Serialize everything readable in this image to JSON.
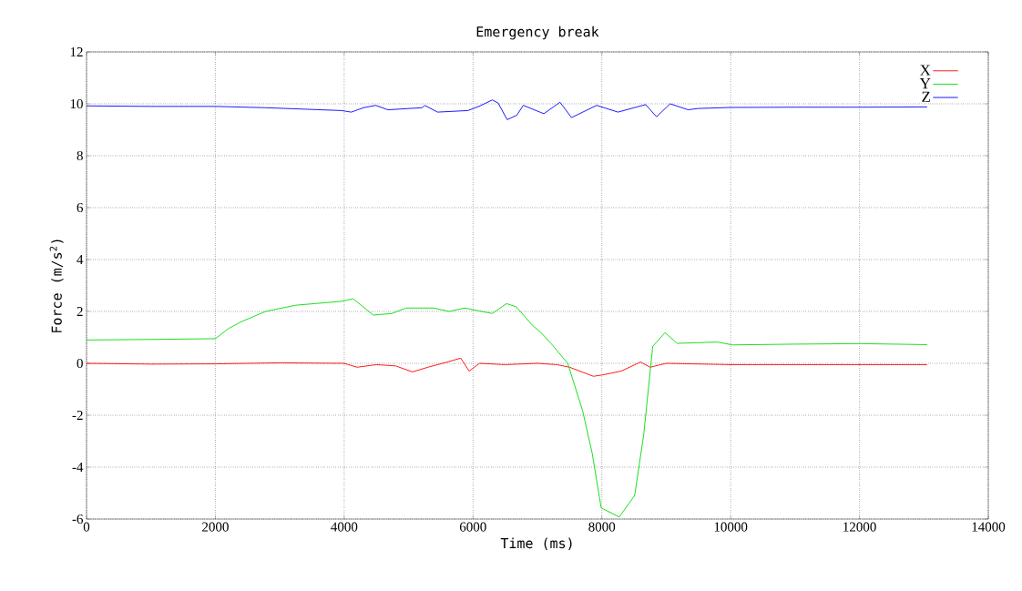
{
  "chart_data": {
    "type": "line",
    "title": "Emergency break",
    "xlabel": "Time (ms)",
    "ylabel": "Force (m/s$^{2}$)",
    "xlim": [
      0,
      14000
    ],
    "ylim": [
      -6,
      12
    ],
    "xticks": [
      0,
      2000,
      4000,
      6000,
      8000,
      10000,
      12000,
      14000
    ],
    "yticks": [
      -6,
      -4,
      -2,
      0,
      2,
      4,
      6,
      8,
      10,
      12
    ],
    "grid": true,
    "legend": "top right",
    "series": [
      {
        "name": "X",
        "color": "#ff0000",
        "x": [
          0,
          1000,
          2000,
          3000,
          4000,
          4200,
          4500,
          4800,
          5060,
          5300,
          5600,
          5810,
          5940,
          6100,
          6500,
          7000,
          7300,
          7500,
          7870,
          8000,
          8300,
          8600,
          8750,
          9000,
          10000,
          11000,
          12000,
          13050
        ],
        "values": [
          0,
          -0.03,
          -0.02,
          0.02,
          0,
          -0.15,
          -0.05,
          -0.1,
          -0.33,
          -0.15,
          0.05,
          0.2,
          -0.3,
          0,
          -0.05,
          0,
          -0.05,
          -0.15,
          -0.5,
          -0.45,
          -0.3,
          0.05,
          -0.15,
          0,
          -0.05,
          -0.05,
          -0.05,
          -0.05
        ]
      },
      {
        "name": "Y",
        "color": "#00dd00",
        "x": [
          0,
          1000,
          2000,
          2210,
          2400,
          2780,
          3250,
          3960,
          4140,
          4450,
          4740,
          4960,
          5390,
          5630,
          5870,
          6300,
          6520,
          6670,
          6920,
          7050,
          7230,
          7470,
          7700,
          7850,
          7990,
          8270,
          8510,
          8650,
          8790,
          8980,
          9170,
          9790,
          10030,
          11000,
          12000,
          13050
        ],
        "values": [
          0.9,
          0.92,
          0.95,
          1.35,
          1.6,
          2.0,
          2.24,
          2.39,
          2.49,
          1.86,
          1.92,
          2.13,
          2.13,
          2.0,
          2.13,
          1.92,
          2.3,
          2.18,
          1.47,
          1.2,
          0.71,
          0.0,
          -1.81,
          -3.46,
          -5.57,
          -5.92,
          -5.09,
          -2.75,
          0.65,
          1.18,
          0.77,
          0.82,
          0.71,
          0.74,
          0.76,
          0.72
        ]
      },
      {
        "name": "Z",
        "color": "#0000ff",
        "x": [
          0,
          1000,
          2000,
          2780,
          3960,
          4110,
          4300,
          4490,
          4680,
          5210,
          5250,
          5450,
          5920,
          6110,
          6300,
          6390,
          6530,
          6680,
          6780,
          7100,
          7350,
          7530,
          7920,
          8250,
          8680,
          8850,
          9060,
          9340,
          9490,
          10000,
          11000,
          12000,
          13050
        ],
        "values": [
          9.92,
          9.9,
          9.9,
          9.85,
          9.74,
          9.68,
          9.85,
          9.94,
          9.77,
          9.85,
          9.94,
          9.68,
          9.74,
          9.92,
          10.15,
          10.03,
          9.39,
          9.56,
          9.94,
          9.62,
          10.06,
          9.47,
          9.94,
          9.68,
          9.97,
          9.5,
          10.0,
          9.77,
          9.82,
          9.86,
          9.87,
          9.87,
          9.88
        ]
      }
    ]
  }
}
